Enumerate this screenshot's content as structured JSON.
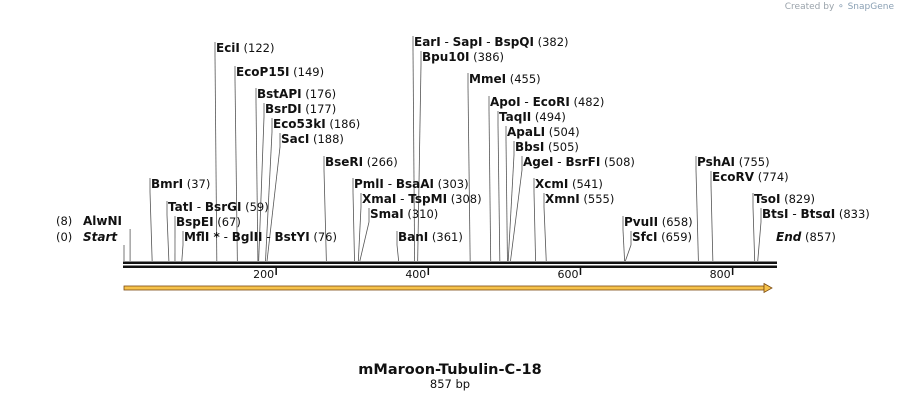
{
  "credit": {
    "prefix": "Created by",
    "brand": "SnapGene"
  },
  "title": "mMaroon-Tubulin-C-18",
  "length_label": "857 bp",
  "map": {
    "length": 857
  },
  "ticks": [
    {
      "label": "200",
      "pos": 200
    },
    {
      "label": "400",
      "pos": 400
    },
    {
      "label": "600",
      "pos": 600
    },
    {
      "label": "800",
      "pos": 800
    }
  ],
  "labels": [
    {
      "side": "left",
      "names": [
        "Start"
      ],
      "num": "(0)",
      "pos": 0,
      "style": "end"
    },
    {
      "side": "left",
      "names": [
        "AlwNI"
      ],
      "num": "(8)",
      "pos": 8
    },
    {
      "side": "right",
      "names": [
        "BmrI"
      ],
      "num": "(37)",
      "pos": 37
    },
    {
      "side": "right",
      "names": [
        "TatI",
        "BsrGI"
      ],
      "num": "(59)",
      "pos": 59
    },
    {
      "side": "right",
      "names": [
        "BspEI"
      ],
      "num": "(67)",
      "pos": 67
    },
    {
      "side": "right",
      "names": [
        "MflI *",
        "BglII",
        "BstYI"
      ],
      "num": "(76)",
      "pos": 76
    },
    {
      "side": "right",
      "names": [
        "EciI"
      ],
      "num": "(122)",
      "pos": 122
    },
    {
      "side": "right",
      "names": [
        "EcoP15I"
      ],
      "num": "(149)",
      "pos": 149
    },
    {
      "side": "right",
      "names": [
        "BstAPI"
      ],
      "num": "(176)",
      "pos": 176
    },
    {
      "side": "right",
      "names": [
        "BsrDI"
      ],
      "num": "(177)",
      "pos": 177
    },
    {
      "side": "right",
      "names": [
        "Eco53kI"
      ],
      "num": "(186)",
      "pos": 186
    },
    {
      "side": "right",
      "names": [
        "SacI"
      ],
      "num": "(188)",
      "pos": 188
    },
    {
      "side": "right",
      "names": [
        "BseRI"
      ],
      "num": "(266)",
      "pos": 266
    },
    {
      "side": "right",
      "names": [
        "PmlI",
        "BsaAI"
      ],
      "num": "(303)",
      "pos": 303
    },
    {
      "side": "right",
      "names": [
        "XmaI",
        "TspMI"
      ],
      "num": "(308)",
      "pos": 308
    },
    {
      "side": "right",
      "names": [
        "SmaI"
      ],
      "num": "(310)",
      "pos": 310
    },
    {
      "side": "right",
      "names": [
        "BanI"
      ],
      "num": "(361)",
      "pos": 361
    },
    {
      "side": "right",
      "names": [
        "EarI",
        "SapI",
        "BspQI"
      ],
      "num": "(382)",
      "pos": 382
    },
    {
      "side": "right",
      "names": [
        "Bpu10I"
      ],
      "num": "(386)",
      "pos": 386
    },
    {
      "side": "right",
      "names": [
        "MmeI"
      ],
      "num": "(455)",
      "pos": 455
    },
    {
      "side": "right",
      "names": [
        "ApoI",
        "EcoRI"
      ],
      "num": "(482)",
      "pos": 482
    },
    {
      "side": "right",
      "names": [
        "TaqII"
      ],
      "num": "(494)",
      "pos": 494
    },
    {
      "side": "right",
      "names": [
        "ApaLI"
      ],
      "num": "(504)",
      "pos": 504
    },
    {
      "side": "right",
      "names": [
        "BbsI"
      ],
      "num": "(505)",
      "pos": 505
    },
    {
      "side": "right",
      "names": [
        "AgeI",
        "BsrFI"
      ],
      "num": "(508)",
      "pos": 508
    },
    {
      "side": "right",
      "names": [
        "XcmI"
      ],
      "num": "(541)",
      "pos": 541
    },
    {
      "side": "right",
      "names": [
        "XmnI"
      ],
      "num": "(555)",
      "pos": 555
    },
    {
      "side": "right",
      "names": [
        "PvuII"
      ],
      "num": "(658)",
      "pos": 658
    },
    {
      "side": "right",
      "names": [
        "SfcI"
      ],
      "num": "(659)",
      "pos": 659
    },
    {
      "side": "right",
      "names": [
        "PshAI"
      ],
      "num": "(755)",
      "pos": 755
    },
    {
      "side": "right",
      "names": [
        "EcoRV"
      ],
      "num": "(774)",
      "pos": 774
    },
    {
      "side": "right",
      "names": [
        "TsoI"
      ],
      "num": "(829)",
      "pos": 829
    },
    {
      "side": "right",
      "names": [
        "BtsI",
        "BtsαI"
      ],
      "num": "(833)",
      "pos": 833
    },
    {
      "side": "right",
      "names": [
        "End"
      ],
      "num": "(857)",
      "pos": 857,
      "style": "end"
    }
  ],
  "colors": {
    "backbone": "#111111",
    "feature_fill": "#f6c24a",
    "feature_stroke": "#7a4a12",
    "leader": "#555555"
  }
}
